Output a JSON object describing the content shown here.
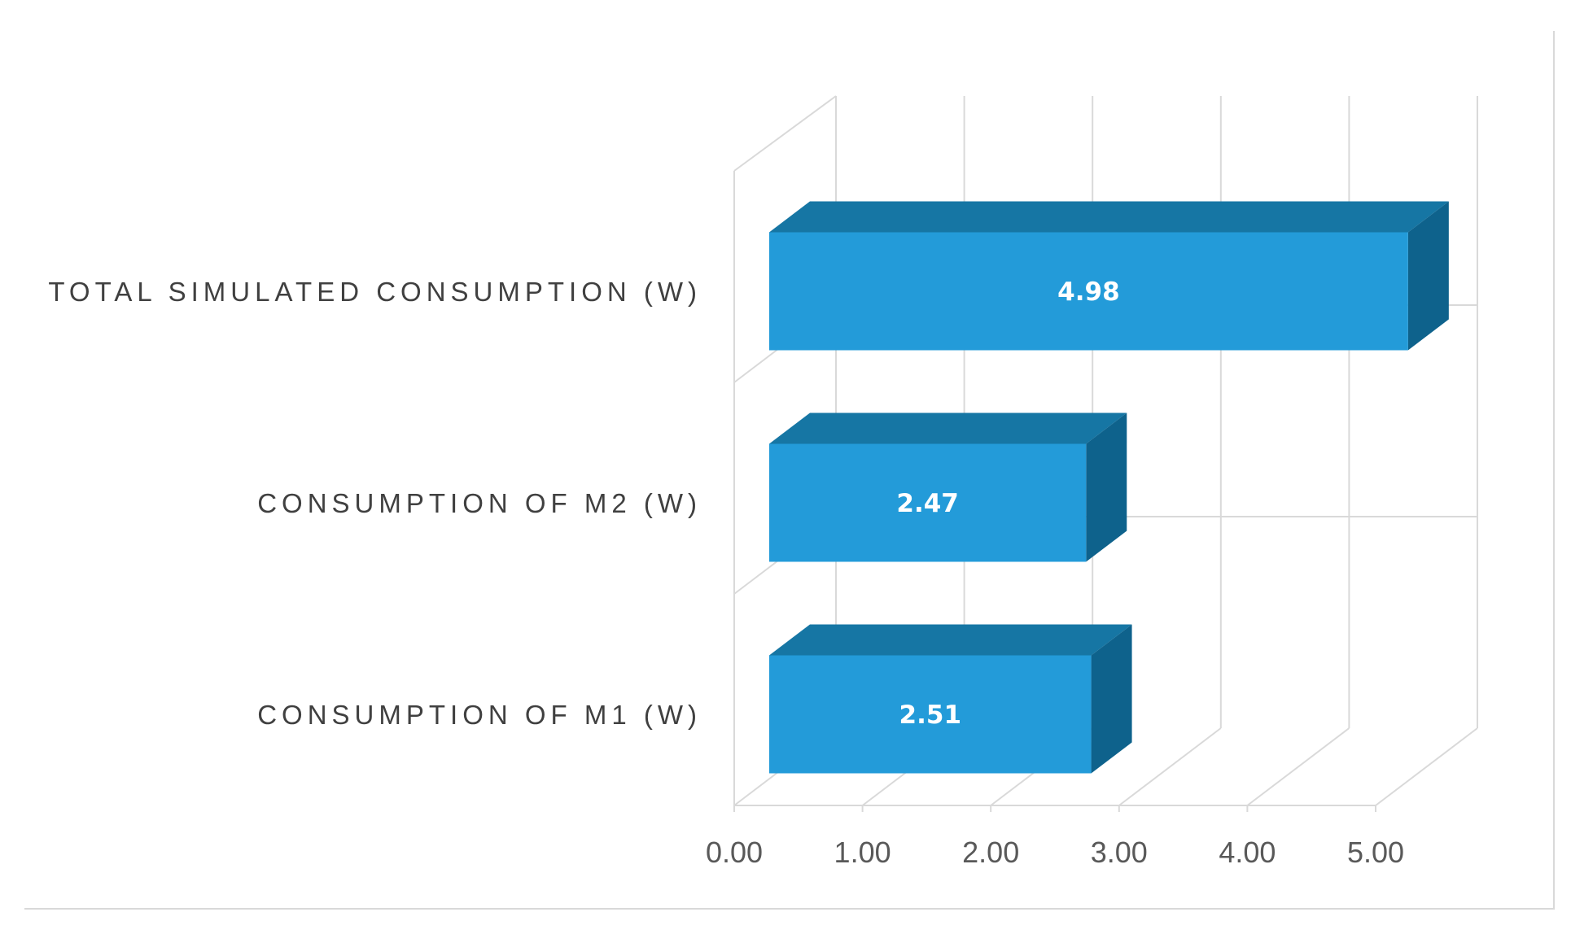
{
  "chart_data": {
    "type": "bar",
    "orientation": "horizontal",
    "style": "3d",
    "title": "",
    "xlabel": "",
    "ylabel": "",
    "categories": [
      "CONSUMPTION OF M1 (W)",
      "CONSUMPTION OF M2 (W)",
      "TOTAL SIMULATED CONSUMPTION (W)"
    ],
    "values": [
      2.51,
      2.47,
      4.98
    ],
    "data_labels": [
      "2.51",
      "2.47",
      "4.98"
    ],
    "xlim": [
      0,
      5
    ],
    "x_ticks": [
      "0.00",
      "1.00",
      "2.00",
      "3.00",
      "4.00",
      "5.00"
    ],
    "grid": true,
    "legend": "none",
    "colors": {
      "bar_front": "#239bd9",
      "bar_top": "#1676a4",
      "bar_side": "#0e628c",
      "gridline": "#d9d9d9",
      "frame": "#d9d9d9"
    }
  }
}
